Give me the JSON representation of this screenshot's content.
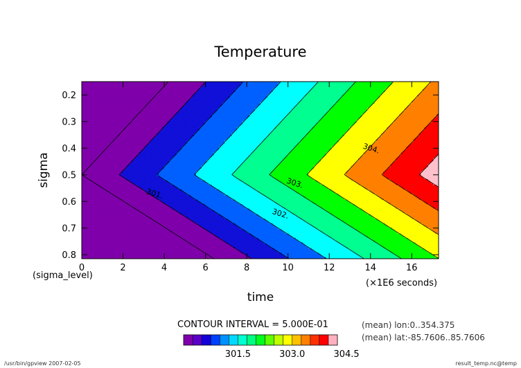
{
  "chart_data": {
    "type": "heatmap",
    "subtype": "filled-contour",
    "title": "Temperature",
    "xlabel": "time",
    "xunit": "(×1E6 seconds)",
    "ylabel": "sigma",
    "ylabel_sub": "(sigma_level)",
    "xlim": [
      0,
      17.3
    ],
    "ylim": [
      0.15,
      0.815
    ],
    "y_reversed": true,
    "x_ticks": [
      "0",
      "2",
      "4",
      "6",
      "8",
      "10",
      "12",
      "14",
      "16"
    ],
    "x_tick_values": [
      0,
      2,
      4,
      6,
      8,
      10,
      12,
      14,
      16
    ],
    "y_ticks": [
      "0.2",
      "0.3",
      "0.4",
      "0.5",
      "0.6",
      "0.7",
      "0.8"
    ],
    "y_tick_values": [
      0.2,
      0.3,
      0.4,
      0.5,
      0.6,
      0.7,
      0.8
    ],
    "contour_interval_text": "CONTOUR INTERVAL = 5.000E-01",
    "contour_levels": [
      300.5,
      301.0,
      301.5,
      302.0,
      302.5,
      303.0,
      303.5,
      304.0,
      304.5,
      305.0
    ],
    "contour_labels": [
      {
        "text": "301.",
        "level": 301.0,
        "x": 3.5,
        "y": 0.58
      },
      {
        "text": "302.",
        "level": 302.0,
        "x": 9.6,
        "y": 0.655
      },
      {
        "text": "303.",
        "level": 303.0,
        "x": 10.3,
        "y": 0.54
      },
      {
        "text": "304.",
        "level": 304.0,
        "x": 14.0,
        "y": 0.41
      }
    ],
    "colorbar": {
      "colors": [
        "#7f00aa",
        "#5a00c8",
        "#1400d8",
        "#0040ff",
        "#0090ff",
        "#00d8ff",
        "#00ffd0",
        "#00ff80",
        "#00ff20",
        "#60ff00",
        "#c0ff00",
        "#ffff00",
        "#ffc000",
        "#ff8000",
        "#ff3000",
        "#ff0000",
        "#ffb0c0"
      ],
      "tick_labels": [
        "301.5",
        "303.0",
        "304.5"
      ],
      "tick_levels": [
        301.5,
        303.0,
        304.5
      ]
    },
    "annotations": [
      "(mean) lon:0..354.375",
      "(mean) lat:-85.7606..85.7606"
    ],
    "grid": false
  },
  "footer": {
    "left": "/usr/bin/gpview  2007-02-05",
    "right": "result_temp.nc@temp"
  }
}
